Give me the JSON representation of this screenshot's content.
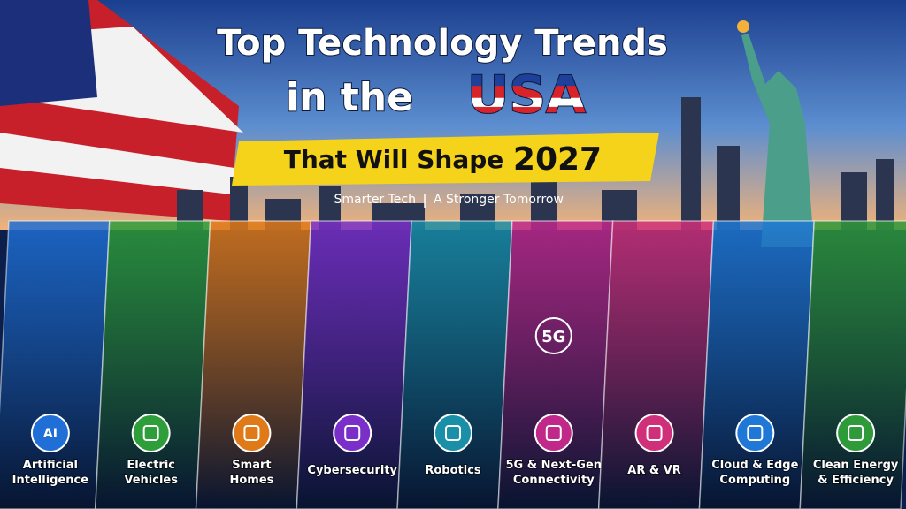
{
  "header": {
    "title_line1": "Top Technology Trends",
    "title_line2_prefix": "in the",
    "title_line2_highlight": "USA",
    "banner_text": "That Will Shape",
    "banner_year": "2027",
    "subtitle_left": "Smarter Tech",
    "subtitle_right": "A Stronger Tomorrow"
  },
  "panels": [
    {
      "label": [
        "Artificial",
        "Intelligence"
      ],
      "icon_text": "AI",
      "color": "#1f6fd6"
    },
    {
      "label": [
        "Electric",
        "Vehicles"
      ],
      "color": "#2e9e3a"
    },
    {
      "label": [
        "Smart",
        "Homes"
      ],
      "color": "#e07a18"
    },
    {
      "label": [
        "Cybersecurity"
      ],
      "color": "#7a2fc9"
    },
    {
      "label": [
        "Robotics"
      ],
      "color": "#1a8fa8"
    },
    {
      "label": [
        "5G & Next-Gen",
        "Connectivity"
      ],
      "badge_text": "5G",
      "color": "#c0288a"
    },
    {
      "label": [
        "AR & VR"
      ],
      "color": "#d0307a"
    },
    {
      "label": [
        "Cloud & Edge",
        "Computing"
      ],
      "color": "#1f78d6"
    },
    {
      "label": [
        "Clean Energy",
        "& Efficiency"
      ],
      "color": "#2f9a3a"
    }
  ]
}
